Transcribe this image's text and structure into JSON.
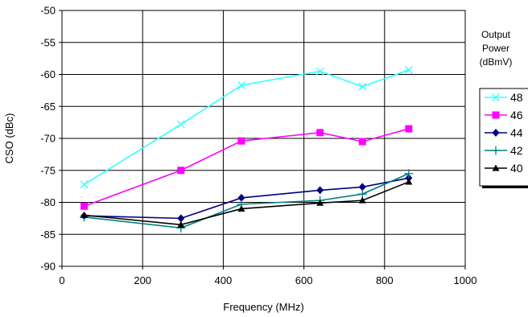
{
  "chart_data": {
    "type": "line",
    "title": "",
    "xlabel": "Frequency (MHz)",
    "ylabel": "CSO (dBc)",
    "xlim": [
      0,
      1000
    ],
    "ylim": [
      -90,
      -50
    ],
    "xticks": [
      0,
      200,
      400,
      600,
      800,
      1000
    ],
    "yticks": [
      -90,
      -85,
      -80,
      -75,
      -70,
      -65,
      -60,
      -55,
      -50
    ],
    "grid": true,
    "legend": {
      "title_lines": [
        "Output",
        "Power",
        "(dBmV)"
      ],
      "placement": "right"
    },
    "series": [
      {
        "name": "48",
        "color": "#33FFFF",
        "marker": "x",
        "x": [
          55,
          295,
          445,
          640,
          745,
          860
        ],
        "y": [
          -77.2,
          -67.8,
          -61.7,
          -59.5,
          -61.9,
          -59.3
        ]
      },
      {
        "name": "46",
        "color": "#FF00FF",
        "marker": "square",
        "x": [
          55,
          295,
          445,
          640,
          745,
          860
        ],
        "y": [
          -80.6,
          -75.0,
          -70.4,
          -69.1,
          -70.5,
          -68.5
        ]
      },
      {
        "name": "44",
        "color": "#000080",
        "marker": "diamond",
        "x": [
          55,
          295,
          445,
          640,
          745,
          860
        ],
        "y": [
          -82.1,
          -82.5,
          -79.3,
          -78.1,
          -77.6,
          -76.2
        ]
      },
      {
        "name": "42",
        "color": "#008080",
        "marker": "plus",
        "x": [
          55,
          295,
          445,
          640,
          745,
          860
        ],
        "y": [
          -82.3,
          -84.0,
          -80.3,
          -79.7,
          -78.7,
          -75.5
        ]
      },
      {
        "name": "40",
        "color": "#000000",
        "marker": "triangle",
        "x": [
          55,
          295,
          445,
          640,
          745,
          860
        ],
        "y": [
          -82.0,
          -83.5,
          -81.0,
          -80.1,
          -79.7,
          -76.8
        ]
      }
    ]
  }
}
